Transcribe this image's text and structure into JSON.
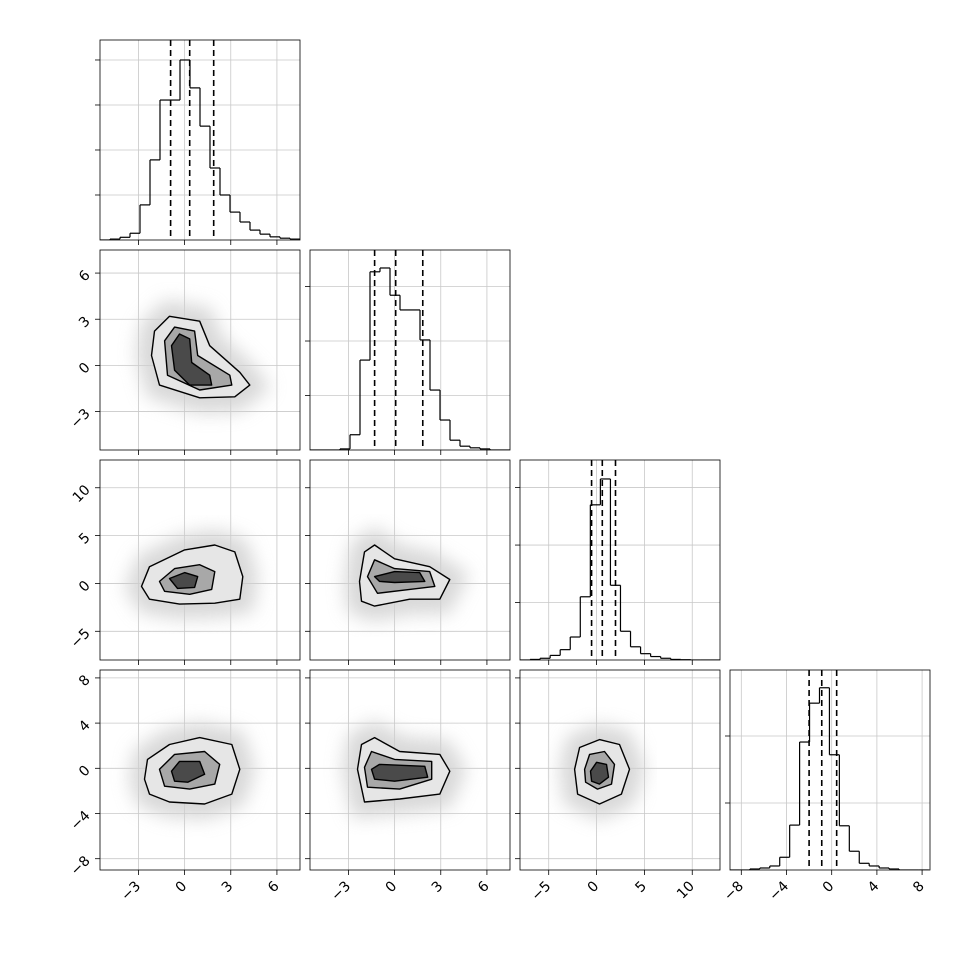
{
  "chart_data": {
    "type": "corner",
    "grid": true,
    "hist_color": "#000000",
    "contour_fills": [
      "#e6e6e6",
      "#a8a8a8",
      "#4a4a4a"
    ],
    "contour_color": "#000000",
    "cloud_color": "#cfcfcf",
    "params": [
      {
        "xlim": [
          -5.5,
          7.5
        ],
        "xticks": [
          {
            "value": -3,
            "label": "−3"
          },
          0,
          3,
          6
        ]
      },
      {
        "xlim": [
          -5.5,
          7.5
        ],
        "xticks": [
          {
            "value": -3,
            "label": "−3"
          },
          0,
          3,
          6
        ]
      },
      {
        "xlim": [
          -8,
          12.9
        ],
        "xticks": [
          {
            "value": -5,
            "label": "−5"
          },
          0,
          5,
          10
        ]
      },
      {
        "xlim": [
          -9,
          8.7
        ],
        "xticks": [
          {
            "value": -8,
            "label": "−8"
          },
          {
            "value": -4,
            "label": "−4"
          },
          0,
          4,
          8
        ]
      }
    ],
    "histograms": [
      {
        "bins": [
          -5.5,
          -4.85,
          -4.2,
          -3.55,
          -2.9,
          -2.25,
          -1.6,
          -0.95,
          -0.3,
          0.35,
          1,
          1.65,
          2.3,
          2.95,
          3.6,
          4.25,
          4.9,
          5.55,
          6.2,
          6.85,
          7.5
        ],
        "values": [
          0,
          20,
          60,
          150,
          780,
          1780,
          3110,
          3110,
          4000,
          3380,
          2530,
          1600,
          1000,
          620,
          400,
          220,
          130,
          70,
          40,
          20
        ],
        "ylim": [
          0,
          4444
        ],
        "yticks": [
          1000,
          2000,
          3000,
          4000
        ],
        "quantiles": [
          -0.91,
          0.33,
          1.89
        ]
      },
      {
        "bins": [
          -5.5,
          -4.85,
          -4.2,
          -3.55,
          -2.9,
          -2.25,
          -1.6,
          -0.95,
          -0.3,
          0.35,
          1,
          1.65,
          2.3,
          2.95,
          3.6,
          4.25,
          4.9,
          5.55,
          6.2,
          6.85,
          7.5
        ],
        "values": [
          0,
          0,
          0,
          20,
          280,
          1650,
          3270,
          3340,
          2840,
          2570,
          2570,
          2020,
          1100,
          550,
          180,
          70,
          40,
          20,
          0,
          0
        ],
        "ylim": [
          0,
          3670
        ],
        "yticks": [
          1000,
          2000,
          3000
        ],
        "quantiles": [
          -1.3,
          0.07,
          1.83
        ]
      },
      {
        "bins": [
          -8,
          -6.95,
          -5.9,
          -4.85,
          -3.8,
          -2.75,
          -1.7,
          -0.65,
          0.4,
          1.45,
          2.5,
          3.55,
          4.6,
          5.65,
          6.7,
          7.75,
          8.8,
          9.85,
          10.9,
          11.95,
          13
        ],
        "values": [
          0,
          10,
          30,
          80,
          180,
          400,
          1100,
          2700,
          3150,
          1300,
          500,
          230,
          110,
          60,
          30,
          10,
          5,
          0,
          0,
          0
        ],
        "ylim": [
          0,
          3480
        ],
        "yticks": [
          1000,
          2000,
          3000
        ],
        "quantiles": [
          -0.52,
          0.6,
          1.98
        ]
      },
      {
        "bins": [
          -9,
          -8.12,
          -7.24,
          -6.36,
          -5.48,
          -4.6,
          -3.72,
          -2.84,
          -1.96,
          -1.08,
          -0.2,
          0.68,
          1.56,
          2.44,
          3.32,
          4.2,
          5.08,
          5.96,
          6.84,
          7.72,
          8.6
        ],
        "values": [
          0,
          0,
          15,
          30,
          60,
          190,
          670,
          1910,
          2490,
          2720,
          1720,
          660,
          280,
          100,
          60,
          30,
          15,
          0,
          0,
          0
        ],
        "ylim": [
          0,
          2985
        ],
        "yticks": [
          1000,
          2000
        ],
        "quantiles": [
          -2.0,
          -0.88,
          0.44
        ]
      }
    ],
    "contours": [
      {
        "levels": [
          {
            "x": [
              -1.96,
              -0.98,
              0.98,
              1.63,
              3.59,
              4.24,
              3.26,
              0.98,
              -1.63,
              -2.15
            ],
            "y": [
              2.23,
              3.19,
              2.87,
              1.28,
              -0.45,
              -1.28,
              -2.04,
              -2.11,
              -1.28,
              0.64
            ]
          },
          {
            "x": [
              -1.3,
              -0.65,
              0.65,
              0.85,
              2.94,
              3.07,
              0.98,
              -1.11
            ],
            "y": [
              1.6,
              2.49,
              2.23,
              0.64,
              -0.64,
              -1.28,
              -1.6,
              -0.64
            ]
          },
          {
            "x": [
              -0.85,
              -0.33,
              0.33,
              0.46,
              1.63,
              1.76,
              0.33,
              -0.65
            ],
            "y": [
              1.28,
              2.04,
              1.72,
              0.19,
              -0.64,
              -1.28,
              -1.28,
              -0.32
            ]
          }
        ]
      },
      {
        "levels": [
          {
            "x": [
              -2.8,
              -2.28,
              0,
              1.96,
              3.26,
              3.78,
              3.59,
              1.96,
              -0.33,
              -2.28
            ],
            "y": [
              -0.31,
              1.75,
              3.51,
              4.02,
              3.3,
              0.72,
              -1.65,
              -2.06,
              -2.16,
              -1.65
            ]
          },
          {
            "x": [
              -1.63,
              -0.65,
              0.98,
              1.96,
              1.76,
              0.33,
              -1.3
            ],
            "y": [
              0.21,
              1.55,
              1.96,
              1.24,
              -0.62,
              -1.13,
              -0.82
            ]
          },
          {
            "x": [
              -0.98,
              0,
              0.85,
              0.65,
              -0.46
            ],
            "y": [
              0.52,
              1.13,
              0.72,
              -0.41,
              -0.52
            ]
          }
        ]
      },
      {
        "levels": [
          {
            "x": [
              -2.28,
              -1.96,
              -1.3,
              0,
              2.28,
              3.59,
              2.94,
              0.98,
              -1.3,
              -2.15
            ],
            "y": [
              0.21,
              3.3,
              4.02,
              2.58,
              1.75,
              0.41,
              -1.65,
              -1.65,
              -2.37,
              -1.86
            ]
          },
          {
            "x": [
              -1.76,
              -1.3,
              0,
              2.28,
              2.61,
              0.98,
              -1.11
            ],
            "y": [
              0.72,
              2.47,
              1.55,
              1.24,
              -0.31,
              -0.62,
              -1.03
            ]
          },
          {
            "x": [
              -1.3,
              0,
              1.63,
              1.96,
              0,
              -0.98
            ],
            "y": [
              0.72,
              1.24,
              1.13,
              0.21,
              0.1,
              0.21
            ]
          }
        ]
      },
      {
        "levels": [
          {
            "x": [
              -2.61,
              -2.41,
              -0.98,
              0.98,
              3.07,
              3.59,
              3.07,
              1.3,
              -0.98,
              -2.28
            ],
            "y": [
              -0.96,
              0.79,
              2.11,
              2.72,
              2.11,
              -0.09,
              -2.28,
              -3.16,
              -2.98,
              -2.28
            ]
          },
          {
            "x": [
              -1.63,
              -0.65,
              1.3,
              2.28,
              1.96,
              0.33,
              -1.3
            ],
            "y": [
              -0.09,
              1.23,
              1.49,
              0.35,
              -1.4,
              -1.84,
              -1.58
            ]
          },
          {
            "x": [
              -0.85,
              -0.33,
              0.98,
              1.3,
              0.2,
              -0.65
            ],
            "y": [
              -0.26,
              0.61,
              0.61,
              -0.53,
              -1.23,
              -1.14
            ]
          }
        ]
      },
      {
        "levels": [
          {
            "x": [
              -2.41,
              -2.15,
              -1.3,
              0.33,
              2.94,
              3.59,
              2.94,
              0.33,
              -1.96
            ],
            "y": [
              -0.09,
              2.11,
              2.72,
              1.49,
              1.23,
              -0.26,
              -2.28,
              -2.72,
              -2.98
            ]
          },
          {
            "x": [
              -1.96,
              -1.5,
              0,
              2.41,
              2.41,
              0.33,
              -1.76
            ],
            "y": [
              0.09,
              1.49,
              0.79,
              0.61,
              -0.96,
              -1.84,
              -1.67
            ]
          },
          {
            "x": [
              -1.5,
              -0.98,
              1.96,
              2.15,
              0,
              -1.3
            ],
            "y": [
              -0.09,
              0.35,
              0.18,
              -0.79,
              -1.14,
              -0.96
            ]
          }
        ]
      },
      {
        "levels": [
          {
            "x": [
              -2.29,
              -1.77,
              0.31,
              2.4,
              3.44,
              2.6,
              0.31,
              -1.98
            ],
            "y": [
              -0.09,
              1.84,
              2.54,
              2.11,
              -0.09,
              -2.28,
              -3.16,
              -2.28
            ]
          },
          {
            "x": [
              -1.25,
              -0.73,
              0.83,
              1.88,
              1.56,
              0.1,
              -1.15
            ],
            "y": [
              -0.09,
              1.23,
              1.49,
              0.35,
              -1.4,
              -1.84,
              -1.23
            ]
          },
          {
            "x": [
              -0.63,
              0,
              1.04,
              1.25,
              0.31,
              -0.52
            ],
            "y": [
              -0.26,
              0.53,
              0.35,
              -0.79,
              -1.4,
              -1.14
            ]
          }
        ]
      }
    ]
  }
}
